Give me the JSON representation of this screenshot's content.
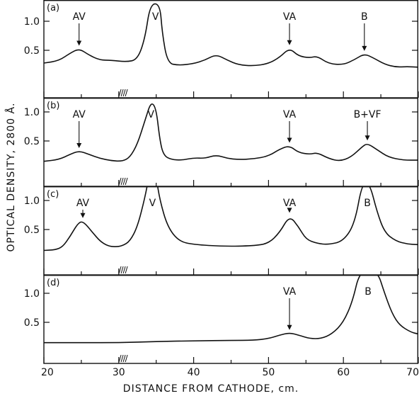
{
  "chart_data": {
    "type": "line",
    "xlabel": "DISTANCE FROM CATHODE, cm.",
    "ylabel": "OPTICAL DENSITY, 2800 Å.",
    "xlim": [
      20,
      70
    ],
    "ylim": [
      0,
      1.25
    ],
    "x_ticks": [
      20,
      30,
      40,
      50,
      60,
      70
    ],
    "y_ticks": [
      0.5,
      1.0
    ],
    "y_tick_labels": [
      "0.5",
      "1.0"
    ],
    "hatch_marker_x": 30.5,
    "panels": [
      {
        "label": "(a)",
        "points": [
          [
            20,
            0.28
          ],
          [
            22,
            0.32
          ],
          [
            23.5,
            0.45
          ],
          [
            24.7,
            0.53
          ],
          [
            26,
            0.42
          ],
          [
            27.5,
            0.33
          ],
          [
            29,
            0.33
          ],
          [
            31,
            0.3
          ],
          [
            32.5,
            0.34
          ],
          [
            33.5,
            0.7
          ],
          [
            34.2,
            1.3
          ],
          [
            35.5,
            1.3
          ],
          [
            35.8,
            0.8
          ],
          [
            36.5,
            0.28
          ],
          [
            38,
            0.24
          ],
          [
            40,
            0.27
          ],
          [
            41.5,
            0.33
          ],
          [
            43,
            0.43
          ],
          [
            44.5,
            0.33
          ],
          [
            46,
            0.25
          ],
          [
            48,
            0.23
          ],
          [
            50,
            0.27
          ],
          [
            51.5,
            0.38
          ],
          [
            52.8,
            0.54
          ],
          [
            54,
            0.4
          ],
          [
            55.5,
            0.37
          ],
          [
            56.5,
            0.4
          ],
          [
            58,
            0.27
          ],
          [
            60,
            0.25
          ],
          [
            61.5,
            0.34
          ],
          [
            62.8,
            0.44
          ],
          [
            64,
            0.37
          ],
          [
            65.5,
            0.26
          ],
          [
            67,
            0.21
          ],
          [
            68.5,
            0.22
          ],
          [
            70,
            0.21
          ]
        ],
        "peaks": [
          {
            "label": "AV",
            "x": 24.7,
            "y": 0.53
          },
          {
            "label": "V",
            "x": 34.9,
            "y": 1.18,
            "arrow": false
          },
          {
            "label": "VA",
            "x": 52.8,
            "y": 0.54
          },
          {
            "label": "B",
            "x": 62.8,
            "y": 0.44
          }
        ]
      },
      {
        "label": "(b)",
        "points": [
          [
            20,
            0.15
          ],
          [
            22,
            0.18
          ],
          [
            23.5,
            0.27
          ],
          [
            24.7,
            0.33
          ],
          [
            26,
            0.27
          ],
          [
            27.5,
            0.2
          ],
          [
            29,
            0.16
          ],
          [
            30.5,
            0.15
          ],
          [
            31.5,
            0.22
          ],
          [
            32.5,
            0.45
          ],
          [
            33.5,
            0.85
          ],
          [
            34.3,
            1.18
          ],
          [
            35,
            1.06
          ],
          [
            35.5,
            0.5
          ],
          [
            36,
            0.25
          ],
          [
            37,
            0.18
          ],
          [
            38.5,
            0.17
          ],
          [
            40,
            0.21
          ],
          [
            41.5,
            0.2
          ],
          [
            43,
            0.26
          ],
          [
            44.5,
            0.2
          ],
          [
            46,
            0.18
          ],
          [
            48,
            0.19
          ],
          [
            50,
            0.24
          ],
          [
            51.5,
            0.36
          ],
          [
            52.8,
            0.42
          ],
          [
            54,
            0.3
          ],
          [
            55.5,
            0.27
          ],
          [
            56.5,
            0.3
          ],
          [
            58,
            0.2
          ],
          [
            59.5,
            0.15
          ],
          [
            61,
            0.22
          ],
          [
            62.5,
            0.4
          ],
          [
            63.2,
            0.46
          ],
          [
            64.5,
            0.35
          ],
          [
            66,
            0.22
          ],
          [
            68,
            0.17
          ],
          [
            70,
            0.17
          ]
        ],
        "peaks": [
          {
            "label": "AV",
            "x": 24.7,
            "y": 0.33
          },
          {
            "label": "V",
            "x": 34.3,
            "y": 1.18,
            "arrow": false
          },
          {
            "label": "VA",
            "x": 52.8,
            "y": 0.42
          },
          {
            "label": "B+VF",
            "x": 63.2,
            "y": 0.46
          }
        ]
      },
      {
        "label": "(c)",
        "points": [
          [
            20,
            0.14
          ],
          [
            21.5,
            0.15
          ],
          [
            22.5,
            0.2
          ],
          [
            23.5,
            0.38
          ],
          [
            24.5,
            0.6
          ],
          [
            25.2,
            0.65
          ],
          [
            26.5,
            0.45
          ],
          [
            27.5,
            0.3
          ],
          [
            28.5,
            0.22
          ],
          [
            29.5,
            0.2
          ],
          [
            30.5,
            0.22
          ],
          [
            31.5,
            0.3
          ],
          [
            32.5,
            0.55
          ],
          [
            33.5,
            1.05
          ],
          [
            34,
            1.4
          ],
          [
            35,
            1.4
          ],
          [
            35.5,
            1.0
          ],
          [
            36.5,
            0.55
          ],
          [
            38,
            0.3
          ],
          [
            40,
            0.24
          ],
          [
            44,
            0.21
          ],
          [
            48,
            0.22
          ],
          [
            50,
            0.26
          ],
          [
            51.5,
            0.45
          ],
          [
            52.8,
            0.74
          ],
          [
            54,
            0.55
          ],
          [
            55,
            0.33
          ],
          [
            56.5,
            0.26
          ],
          [
            58,
            0.24
          ],
          [
            60,
            0.3
          ],
          [
            61.5,
            0.6
          ],
          [
            62.5,
            1.3
          ],
          [
            63.5,
            1.3
          ],
          [
            64.5,
            0.8
          ],
          [
            65.5,
            0.45
          ],
          [
            67,
            0.3
          ],
          [
            68.5,
            0.25
          ],
          [
            70,
            0.24
          ]
        ],
        "peaks": [
          {
            "label": "AV",
            "x": 25.2,
            "y": 0.65
          },
          {
            "label": "V",
            "x": 34.5,
            "y": 1.18,
            "arrow": false
          },
          {
            "label": "VA",
            "x": 52.8,
            "y": 0.74
          },
          {
            "label": "B",
            "x": 63.2,
            "y": 1.18,
            "arrow": false
          }
        ]
      },
      {
        "label": "(d)",
        "points": [
          [
            20,
            0.15
          ],
          [
            25,
            0.15
          ],
          [
            30,
            0.15
          ],
          [
            35,
            0.17
          ],
          [
            40,
            0.18
          ],
          [
            45,
            0.19
          ],
          [
            48,
            0.19
          ],
          [
            50,
            0.22
          ],
          [
            51.5,
            0.28
          ],
          [
            52.8,
            0.32
          ],
          [
            54,
            0.28
          ],
          [
            55.5,
            0.22
          ],
          [
            57,
            0.22
          ],
          [
            58.5,
            0.3
          ],
          [
            60,
            0.5
          ],
          [
            61.2,
            0.85
          ],
          [
            62.2,
            1.4
          ],
          [
            64.5,
            1.4
          ],
          [
            65.5,
            1.0
          ],
          [
            66.5,
            0.65
          ],
          [
            67.5,
            0.45
          ],
          [
            69,
            0.33
          ],
          [
            70,
            0.3
          ]
        ],
        "peaks": [
          {
            "label": "VA",
            "x": 52.8,
            "y": 0.32
          },
          {
            "label": "B",
            "x": 63.3,
            "y": 1.18,
            "arrow": false
          }
        ]
      }
    ]
  }
}
